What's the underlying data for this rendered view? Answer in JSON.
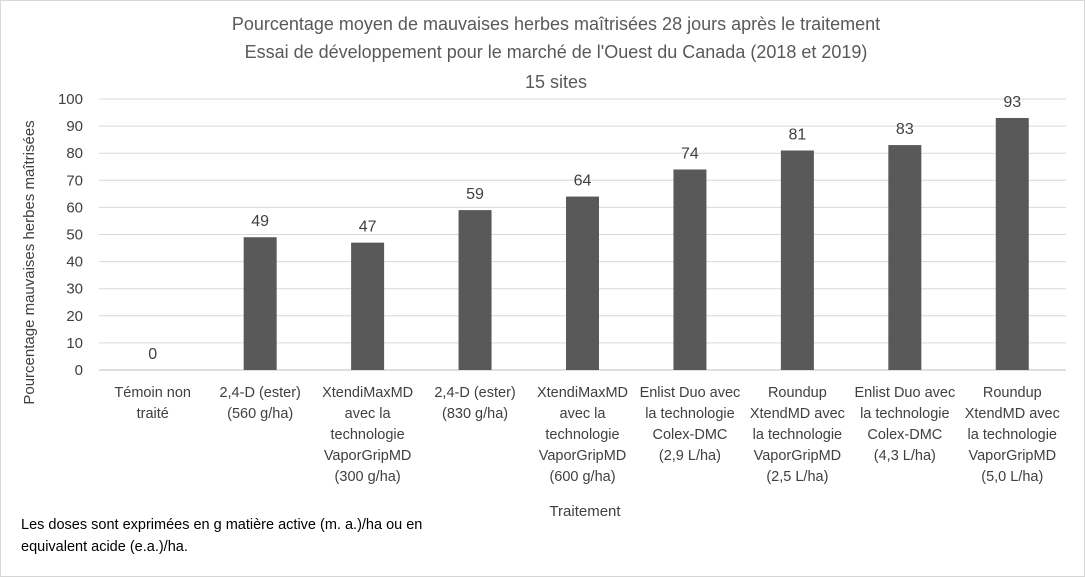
{
  "chart_data": {
    "type": "bar",
    "title_lines": [
      "Pourcentage moyen de mauvaises herbes maîtrisées 28 jours après le traitement",
      "Essai de développement pour le marché de l'Ouest du Canada (2018 et 2019)",
      "15 sites"
    ],
    "xlabel": "Traitement",
    "ylabel": "Pourcentage mauvaises herbes maîtrisées",
    "ylim": [
      0,
      100
    ],
    "yticks": [
      0,
      10,
      20,
      30,
      40,
      50,
      60,
      70,
      80,
      90,
      100
    ],
    "grid": true,
    "legend": "none",
    "bar_color": "#595959",
    "categories": [
      [
        "Témoin non",
        "traité"
      ],
      [
        "2,4-D (ester)",
        "(560 g/ha)"
      ],
      [
        "XtendiMaxMD",
        "avec la",
        "technologie",
        "VaporGripMD",
        "(300 g/ha)"
      ],
      [
        "2,4-D (ester)",
        "(830 g/ha)"
      ],
      [
        "XtendiMaxMD",
        "avec la",
        "technologie",
        "VaporGripMD",
        "(600 g/ha)"
      ],
      [
        "Enlist Duo avec",
        "la technologie",
        "Colex-DMC",
        "(2,9 L/ha)"
      ],
      [
        "Roundup",
        "XtendMD avec",
        "la technologie",
        "VaporGripMD",
        "(2,5 L/ha)"
      ],
      [
        "Enlist Duo avec",
        "la technologie",
        "Colex-DMC",
        "(4,3 L/ha)"
      ],
      [
        "Roundup",
        "XtendMD avec",
        "la technologie",
        "VaporGripMD",
        "(5,0 L/ha)"
      ]
    ],
    "values": [
      0,
      49,
      47,
      59,
      64,
      74,
      81,
      83,
      93
    ]
  },
  "note": "Les doses sont exprimées en g matière active (m. a.)/ha ou en equivalent acide (e.a.)/ha."
}
